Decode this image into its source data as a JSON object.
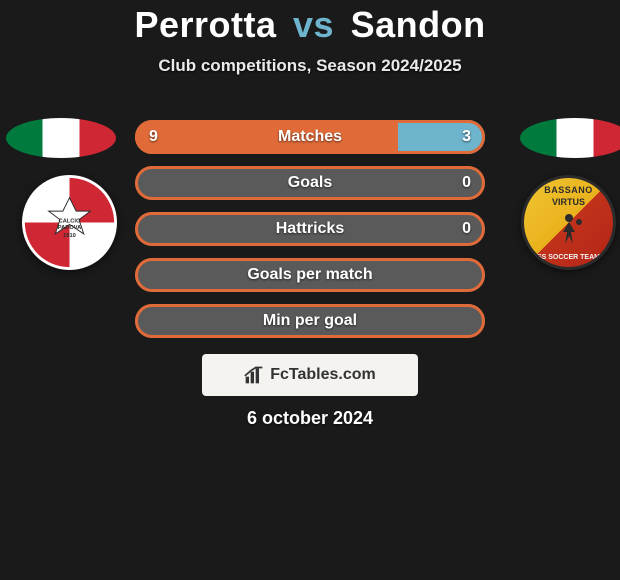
{
  "header": {
    "player1": "Perrotta",
    "vs": "vs",
    "player2": "Sandon",
    "subtitle": "Club competitions, Season 2024/2025"
  },
  "colors": {
    "player1": "#e06b38",
    "player2": "#6db4cc",
    "track": "#5a5a5a",
    "badge_bg": "#f5f3ef",
    "title_accent": "#6db4cc"
  },
  "shield_left": {
    "name": "calcio-padova-crest",
    "primary": "#cf2734",
    "secondary": "#ffffff",
    "text_top": "CALCIO",
    "text_mid": "PADOVA",
    "year": "1910"
  },
  "shield_right": {
    "name": "bassano-virtus-crest",
    "text_top": "BASSANO",
    "text_mid": "VIRTUS",
    "text_bot": "SS SOCCER TEAM"
  },
  "bars": [
    {
      "label": "Matches",
      "left_val": "9",
      "right_val": "3",
      "left_pct": 75,
      "right_pct": 25,
      "show_vals": true
    },
    {
      "label": "Goals",
      "left_val": "",
      "right_val": "0",
      "left_pct": 0,
      "right_pct": 0,
      "show_vals": true
    },
    {
      "label": "Hattricks",
      "left_val": "",
      "right_val": "0",
      "left_pct": 0,
      "right_pct": 0,
      "show_vals": true
    },
    {
      "label": "Goals per match",
      "left_val": "",
      "right_val": "",
      "left_pct": 0,
      "right_pct": 0,
      "show_vals": false
    },
    {
      "label": "Min per goal",
      "left_val": "",
      "right_val": "",
      "left_pct": 0,
      "right_pct": 0,
      "show_vals": false
    }
  ],
  "badge": {
    "text": "FcTables.com"
  },
  "date": "6 october 2024"
}
